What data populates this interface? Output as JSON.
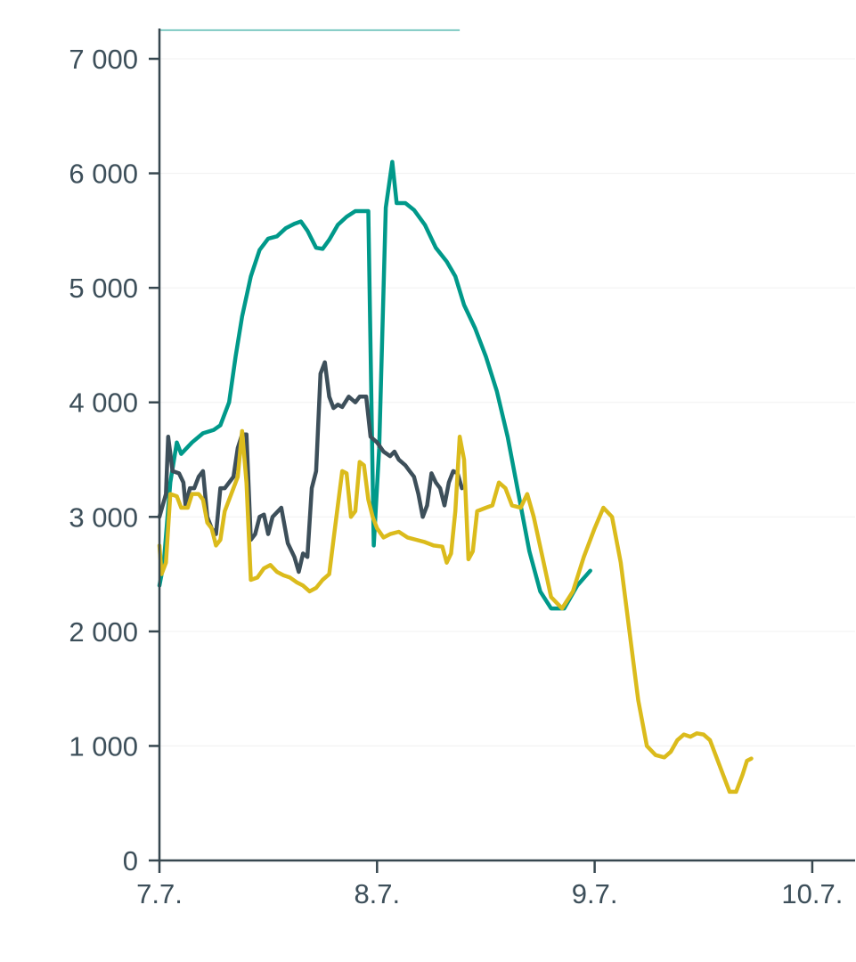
{
  "chart_data": {
    "type": "line",
    "title": "",
    "xlabel": "",
    "ylabel": "",
    "ylim": [
      0,
      7000
    ],
    "xlim": [
      0,
      3
    ],
    "y_ticks": [
      {
        "value": 0,
        "label": "0"
      },
      {
        "value": 1000,
        "label": "1 000"
      },
      {
        "value": 2000,
        "label": "2 000"
      },
      {
        "value": 3000,
        "label": "3 000"
      },
      {
        "value": 4000,
        "label": "4 000"
      },
      {
        "value": 5000,
        "label": "5 000"
      },
      {
        "value": 6000,
        "label": "6 000"
      },
      {
        "value": 7000,
        "label": "7 000"
      }
    ],
    "x_ticks": [
      {
        "value": 0,
        "label": "7.7."
      },
      {
        "value": 1,
        "label": "8.7."
      },
      {
        "value": 2,
        "label": "9.7."
      },
      {
        "value": 3,
        "label": "10.7."
      }
    ],
    "x_unit": "days from 7.7.",
    "grid": true,
    "legend": "none",
    "series": [
      {
        "color": "#00998a",
        "points": [
          [
            0.0,
            2400
          ],
          [
            0.02,
            2600
          ],
          [
            0.05,
            3300
          ],
          [
            0.08,
            3650
          ],
          [
            0.1,
            3550
          ],
          [
            0.15,
            3650
          ],
          [
            0.2,
            3730
          ],
          [
            0.25,
            3760
          ],
          [
            0.28,
            3800
          ],
          [
            0.32,
            4000
          ],
          [
            0.35,
            4400
          ],
          [
            0.38,
            4750
          ],
          [
            0.42,
            5100
          ],
          [
            0.46,
            5330
          ],
          [
            0.5,
            5430
          ],
          [
            0.54,
            5450
          ],
          [
            0.58,
            5520
          ],
          [
            0.62,
            5560
          ],
          [
            0.65,
            5580
          ],
          [
            0.68,
            5500
          ],
          [
            0.72,
            5350
          ],
          [
            0.75,
            5340
          ],
          [
            0.78,
            5420
          ],
          [
            0.82,
            5550
          ],
          [
            0.86,
            5620
          ],
          [
            0.9,
            5670
          ],
          [
            0.96,
            5670
          ],
          [
            0.985,
            2750
          ],
          [
            1.01,
            3600
          ],
          [
            1.04,
            5700
          ],
          [
            1.07,
            6100
          ],
          [
            1.09,
            5740
          ],
          [
            1.13,
            5740
          ],
          [
            1.17,
            5680
          ],
          [
            1.22,
            5550
          ],
          [
            1.27,
            5350
          ],
          [
            1.32,
            5230
          ],
          [
            1.36,
            5100
          ],
          [
            1.4,
            4850
          ],
          [
            1.45,
            4650
          ],
          [
            1.5,
            4400
          ],
          [
            1.55,
            4100
          ],
          [
            1.6,
            3700
          ],
          [
            1.65,
            3200
          ],
          [
            1.7,
            2700
          ],
          [
            1.75,
            2350
          ],
          [
            1.8,
            2200
          ],
          [
            1.86,
            2200
          ],
          [
            1.92,
            2400
          ],
          [
            1.98,
            2530
          ]
        ]
      },
      {
        "color": "#3d4f5a",
        "points": [
          [
            0.0,
            3000
          ],
          [
            0.03,
            3200
          ],
          [
            0.04,
            3700
          ],
          [
            0.06,
            3400
          ],
          [
            0.09,
            3380
          ],
          [
            0.11,
            3300
          ],
          [
            0.12,
            3100
          ],
          [
            0.14,
            3250
          ],
          [
            0.16,
            3250
          ],
          [
            0.18,
            3350
          ],
          [
            0.2,
            3400
          ],
          [
            0.22,
            3000
          ],
          [
            0.24,
            2900
          ],
          [
            0.26,
            2850
          ],
          [
            0.28,
            3250
          ],
          [
            0.3,
            3250
          ],
          [
            0.32,
            3300
          ],
          [
            0.34,
            3350
          ],
          [
            0.36,
            3600
          ],
          [
            0.38,
            3720
          ],
          [
            0.4,
            3720
          ],
          [
            0.42,
            2800
          ],
          [
            0.44,
            2850
          ],
          [
            0.46,
            3000
          ],
          [
            0.48,
            3020
          ],
          [
            0.5,
            2850
          ],
          [
            0.52,
            3000
          ],
          [
            0.56,
            3080
          ],
          [
            0.59,
            2770
          ],
          [
            0.62,
            2650
          ],
          [
            0.64,
            2520
          ],
          [
            0.66,
            2680
          ],
          [
            0.68,
            2650
          ],
          [
            0.7,
            3250
          ],
          [
            0.72,
            3400
          ],
          [
            0.74,
            4250
          ],
          [
            0.76,
            4350
          ],
          [
            0.78,
            4050
          ],
          [
            0.8,
            3950
          ],
          [
            0.82,
            3980
          ],
          [
            0.84,
            3960
          ],
          [
            0.87,
            4050
          ],
          [
            0.9,
            4000
          ],
          [
            0.92,
            4050
          ],
          [
            0.95,
            4050
          ],
          [
            0.97,
            3700
          ],
          [
            1.0,
            3650
          ],
          [
            1.03,
            3570
          ],
          [
            1.06,
            3530
          ],
          [
            1.08,
            3570
          ],
          [
            1.1,
            3500
          ],
          [
            1.13,
            3450
          ],
          [
            1.15,
            3400
          ],
          [
            1.17,
            3350
          ],
          [
            1.19,
            3200
          ],
          [
            1.21,
            3000
          ],
          [
            1.23,
            3100
          ],
          [
            1.25,
            3380
          ],
          [
            1.27,
            3300
          ],
          [
            1.29,
            3250
          ],
          [
            1.31,
            3100
          ],
          [
            1.33,
            3300
          ],
          [
            1.35,
            3400
          ],
          [
            1.37,
            3380
          ],
          [
            1.39,
            3250
          ]
        ]
      },
      {
        "color": "#dbbb1c",
        "points": [
          [
            0.0,
            2750
          ],
          [
            0.01,
            2500
          ],
          [
            0.03,
            2600
          ],
          [
            0.05,
            3200
          ],
          [
            0.08,
            3180
          ],
          [
            0.1,
            3080
          ],
          [
            0.13,
            3080
          ],
          [
            0.15,
            3200
          ],
          [
            0.18,
            3200
          ],
          [
            0.2,
            3150
          ],
          [
            0.22,
            2950
          ],
          [
            0.24,
            2900
          ],
          [
            0.26,
            2750
          ],
          [
            0.28,
            2800
          ],
          [
            0.3,
            3050
          ],
          [
            0.32,
            3150
          ],
          [
            0.34,
            3250
          ],
          [
            0.36,
            3350
          ],
          [
            0.38,
            3750
          ],
          [
            0.4,
            3300
          ],
          [
            0.42,
            2450
          ],
          [
            0.45,
            2470
          ],
          [
            0.48,
            2550
          ],
          [
            0.51,
            2580
          ],
          [
            0.54,
            2520
          ],
          [
            0.57,
            2490
          ],
          [
            0.6,
            2470
          ],
          [
            0.63,
            2430
          ],
          [
            0.66,
            2400
          ],
          [
            0.69,
            2350
          ],
          [
            0.72,
            2380
          ],
          [
            0.75,
            2450
          ],
          [
            0.78,
            2500
          ],
          [
            0.8,
            2800
          ],
          [
            0.82,
            3100
          ],
          [
            0.84,
            3400
          ],
          [
            0.86,
            3380
          ],
          [
            0.88,
            3000
          ],
          [
            0.9,
            3050
          ],
          [
            0.92,
            3480
          ],
          [
            0.94,
            3450
          ],
          [
            0.96,
            3150
          ],
          [
            0.98,
            3000
          ],
          [
            1.0,
            2900
          ],
          [
            1.03,
            2820
          ],
          [
            1.06,
            2850
          ],
          [
            1.1,
            2870
          ],
          [
            1.14,
            2820
          ],
          [
            1.18,
            2800
          ],
          [
            1.22,
            2780
          ],
          [
            1.26,
            2750
          ],
          [
            1.3,
            2740
          ],
          [
            1.32,
            2600
          ],
          [
            1.34,
            2680
          ],
          [
            1.36,
            3050
          ],
          [
            1.38,
            3700
          ],
          [
            1.4,
            3500
          ],
          [
            1.42,
            2630
          ],
          [
            1.44,
            2700
          ],
          [
            1.46,
            3050
          ],
          [
            1.5,
            3080
          ],
          [
            1.53,
            3100
          ],
          [
            1.56,
            3300
          ],
          [
            1.59,
            3250
          ],
          [
            1.62,
            3100
          ],
          [
            1.66,
            3080
          ],
          [
            1.69,
            3200
          ],
          [
            1.72,
            3000
          ],
          [
            1.76,
            2650
          ],
          [
            1.8,
            2300
          ],
          [
            1.85,
            2200
          ],
          [
            1.9,
            2350
          ],
          [
            1.95,
            2650
          ],
          [
            2.0,
            2900
          ],
          [
            2.04,
            3080
          ],
          [
            2.08,
            3000
          ],
          [
            2.12,
            2600
          ],
          [
            2.16,
            2000
          ],
          [
            2.2,
            1400
          ],
          [
            2.24,
            1000
          ],
          [
            2.28,
            920
          ],
          [
            2.32,
            900
          ],
          [
            2.35,
            950
          ],
          [
            2.38,
            1050
          ],
          [
            2.41,
            1100
          ],
          [
            2.44,
            1080
          ],
          [
            2.47,
            1110
          ],
          [
            2.5,
            1100
          ],
          [
            2.53,
            1050
          ],
          [
            2.56,
            900
          ],
          [
            2.59,
            750
          ],
          [
            2.62,
            600
          ],
          [
            2.65,
            600
          ],
          [
            2.68,
            750
          ],
          [
            2.7,
            870
          ],
          [
            2.72,
            890
          ]
        ]
      }
    ],
    "top_band": {
      "color": "#7ecac3",
      "x_range": [
        0,
        1.38
      ],
      "y": 7250
    }
  }
}
